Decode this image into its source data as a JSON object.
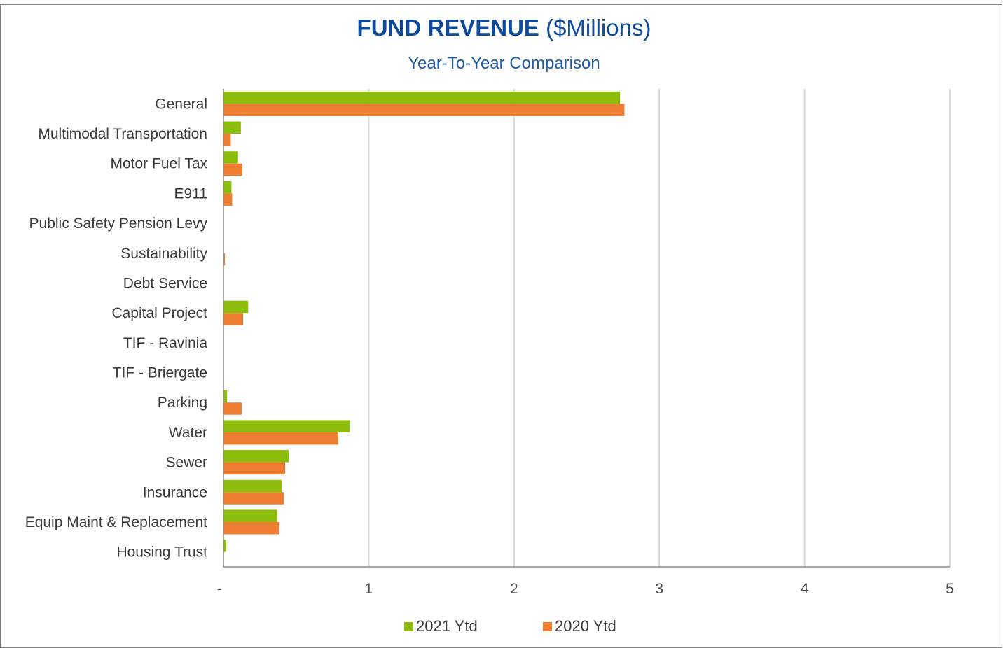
{
  "title": {
    "main": "FUND REVENUE",
    "suffix": "($Millions)"
  },
  "subtitle": "Year-To-Year Comparison",
  "colors": {
    "title": "#0d4a9b",
    "subtitle": "#1f5aa8",
    "series_2021": "#8dbd0c",
    "series_2020": "#ed7d31",
    "gridline": "#d9d9d9",
    "axis": "#8c8c8c"
  },
  "chart_data": {
    "type": "bar",
    "orientation": "horizontal",
    "title": "FUND REVENUE ($Millions)",
    "subtitle": "Year-To-Year Comparison",
    "categories": [
      "General",
      "Multimodal Transportation",
      "Motor Fuel Tax",
      "E911",
      "Public Safety Pension Levy",
      "Sustainability",
      "Debt Service",
      "Capital Project",
      "TIF - Ravinia",
      "TIF - Briergate",
      "Parking",
      "Water",
      "Sewer",
      "Insurance",
      "Equip Maint & Replacement",
      "Housing Trust"
    ],
    "series": [
      {
        "name": "2021 Ytd",
        "values": [
          2.73,
          0.12,
          0.1,
          0.055,
          0,
          0,
          0,
          0.17,
          0,
          0,
          0.025,
          0.87,
          0.45,
          0.4,
          0.37,
          0.02
        ]
      },
      {
        "name": "2020 Ytd",
        "values": [
          2.76,
          0.05,
          0.13,
          0.06,
          0,
          0.01,
          0,
          0.135,
          0,
          0,
          0.125,
          0.79,
          0.425,
          0.415,
          0.385,
          0
        ]
      }
    ],
    "xlim": [
      0,
      5
    ],
    "xticks": [
      "-",
      "1",
      "2",
      "3",
      "4",
      "5"
    ],
    "grid": true,
    "legend": "bottom"
  }
}
